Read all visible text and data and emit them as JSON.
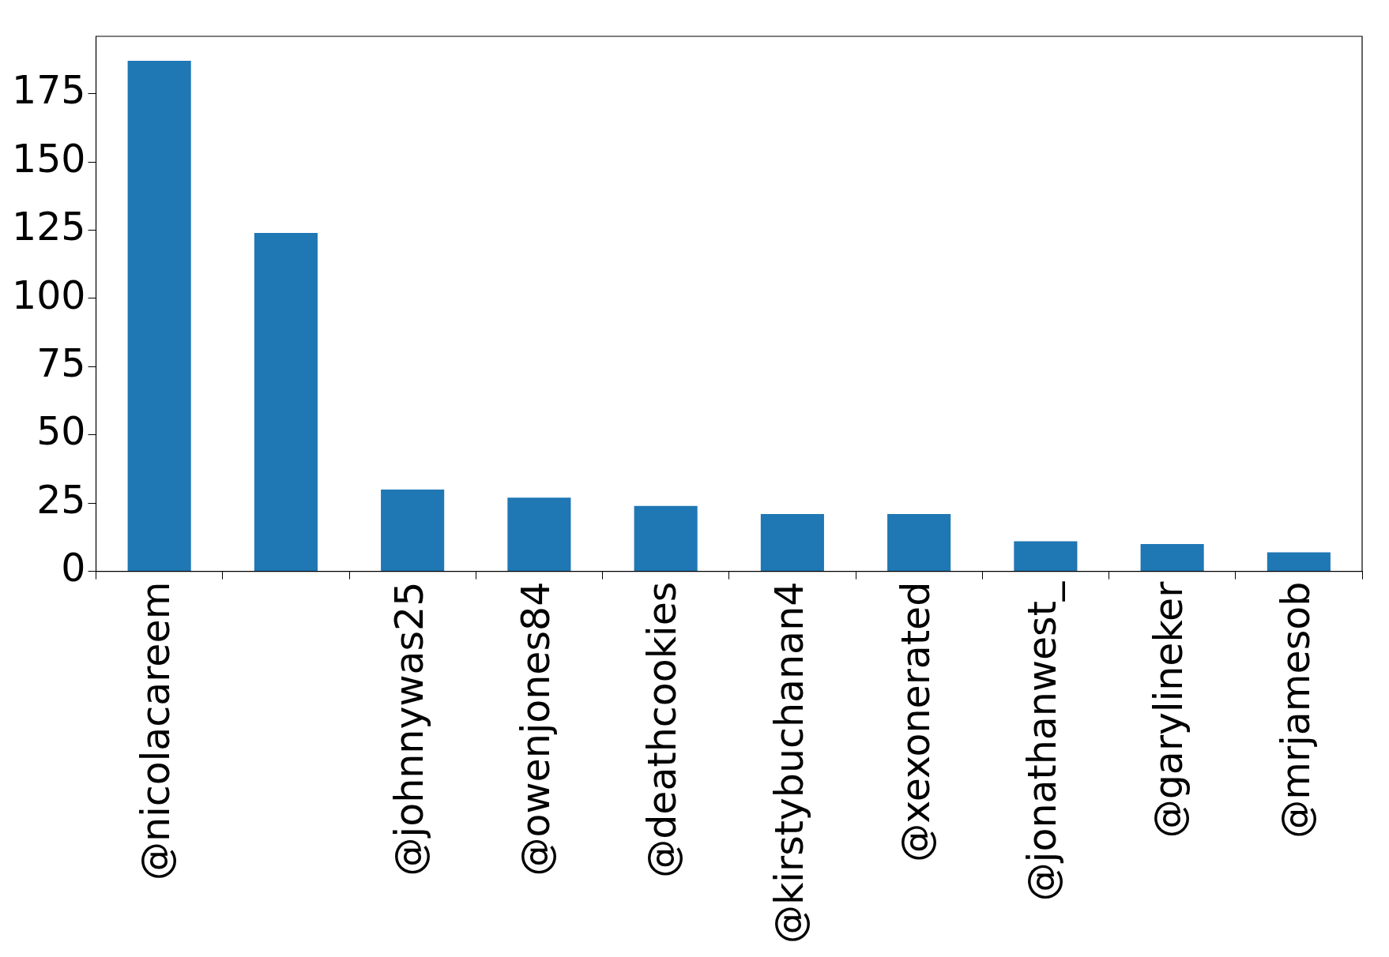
{
  "chart_data": {
    "type": "bar",
    "categories": [
      "@nicolacareem",
      null,
      "@johnnywas25",
      "@owenjones84",
      "@deathcookies",
      "@kirstybuchanan4",
      "@xexonerated",
      "@jonathanwest_",
      "@garylineker",
      "@mrjamesob"
    ],
    "values": [
      187,
      124,
      30,
      27,
      24,
      21,
      21,
      11,
      10,
      7
    ],
    "color": "#1f77b4",
    "ylim": [
      0,
      196
    ],
    "yticks": [
      0,
      25,
      50,
      75,
      100,
      125,
      150,
      175
    ],
    "grid": false,
    "legend": false
  }
}
